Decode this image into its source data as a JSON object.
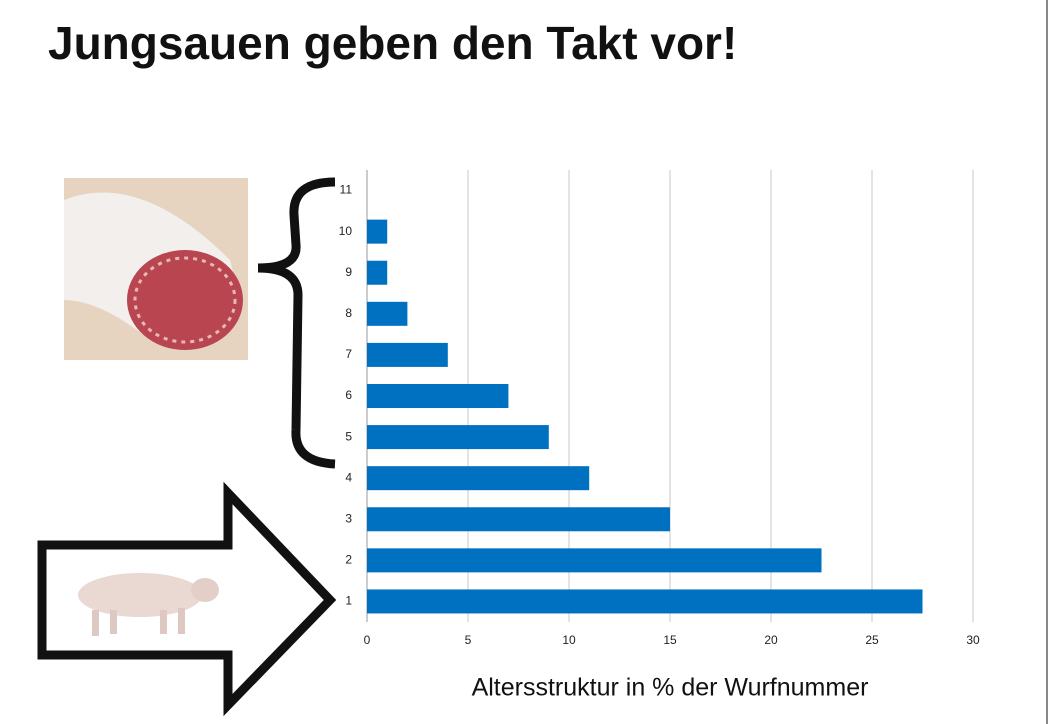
{
  "chart_data": {
    "type": "bar",
    "orientation": "horizontal",
    "title": "Jungsauen geben den Takt vor!",
    "x_label": "Altersstruktur in % der Wurfnummer",
    "categories": [
      "1",
      "2",
      "3",
      "4",
      "5",
      "6",
      "7",
      "8",
      "9",
      "10",
      "11"
    ],
    "values": [
      27.5,
      22.5,
      15,
      11,
      9,
      7,
      4,
      2,
      1,
      1,
      0
    ],
    "color": "#0070c0",
    "xlim": [
      0,
      30
    ],
    "xticks": [
      0,
      5,
      10,
      15,
      20,
      25,
      30
    ],
    "grid": true
  }
}
